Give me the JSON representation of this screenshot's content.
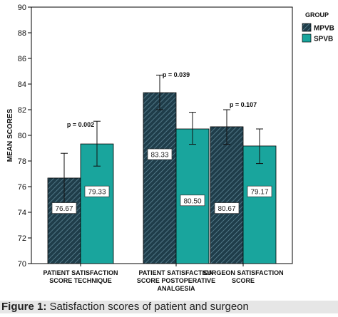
{
  "chart_data": {
    "type": "bar",
    "title": "",
    "xlabel": "",
    "ylabel": "MEAN SCORES",
    "ylim": [
      70,
      90
    ],
    "yticks": [
      70,
      72,
      74,
      76,
      78,
      80,
      82,
      84,
      86,
      88,
      90
    ],
    "grid": false,
    "legend": {
      "title": "GROUP",
      "position": "top-right"
    },
    "categories": [
      [
        "PATIENT SATISFACTION",
        "SCORE TECHNIQUE"
      ],
      [
        "PATIENT SATISFACTION",
        "SCORE POSTOPERATIVE",
        "ANALGESIA"
      ],
      [
        "SURGEON SATISFACTION",
        "SCORE"
      ]
    ],
    "series": [
      {
        "name": "MPVB",
        "color": "#1f3d4a",
        "pattern": "diagonal-hatch",
        "values": [
          76.67,
          83.33,
          80.67
        ],
        "value_labels": [
          "76.67",
          "83.33",
          "80.67"
        ],
        "error_low": [
          74.7,
          82.0,
          79.3
        ],
        "error_high": [
          78.6,
          84.7,
          82.0
        ]
      },
      {
        "name": "SPVB",
        "color": "#19a59d",
        "pattern": "solid",
        "values": [
          79.33,
          80.5,
          79.17
        ],
        "value_labels": [
          "79.33",
          "80.50",
          "79.17"
        ],
        "error_low": [
          77.6,
          79.3,
          77.8
        ],
        "error_high": [
          81.1,
          81.8,
          80.5
        ]
      }
    ],
    "annotations": [
      "p = 0.002",
      "p = 0.039",
      "p = 0.107"
    ]
  },
  "caption": {
    "label": "Figure 1:",
    "text": " Satisfaction scores of patient and surgeon"
  }
}
